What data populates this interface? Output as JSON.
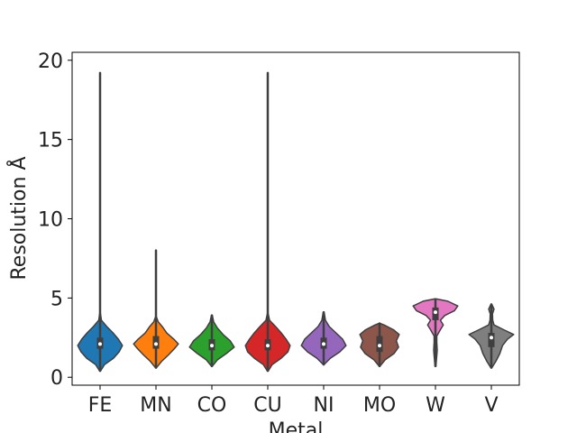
{
  "chart_data": {
    "type": "violin",
    "xlabel": "Metal",
    "ylabel": "Resolution Å",
    "ylim": [
      -0.5,
      20.5
    ],
    "yticks": [
      0,
      5,
      10,
      15,
      20
    ],
    "grid": false,
    "categories": [
      "FE",
      "MN",
      "CO",
      "CU",
      "NI",
      "MO",
      "W",
      "V"
    ],
    "colors": [
      "#1f77b4",
      "#ff7f0e",
      "#2ca02c",
      "#d62728",
      "#9467bd",
      "#8c564b",
      "#e377c2",
      "#7f7f7f"
    ],
    "violins": [
      {
        "min": 0.4,
        "max": 19.2,
        "q1": 1.8,
        "median": 2.1,
        "q3": 2.5,
        "profile": [
          [
            0.4,
            0.02
          ],
          [
            0.8,
            0.2
          ],
          [
            1.2,
            0.6
          ],
          [
            1.6,
            0.85
          ],
          [
            2.0,
            1.0
          ],
          [
            2.4,
            0.82
          ],
          [
            2.8,
            0.58
          ],
          [
            3.2,
            0.3
          ],
          [
            3.6,
            0.06
          ],
          [
            4.0,
            0.02
          ]
        ]
      },
      {
        "min": 0.6,
        "max": 8.0,
        "q1": 1.8,
        "median": 2.1,
        "q3": 2.6,
        "profile": [
          [
            0.6,
            0.02
          ],
          [
            1.0,
            0.25
          ],
          [
            1.4,
            0.55
          ],
          [
            1.8,
            0.82
          ],
          [
            2.1,
            1.0
          ],
          [
            2.4,
            0.8
          ],
          [
            2.8,
            0.48
          ],
          [
            3.2,
            0.28
          ],
          [
            3.5,
            0.1
          ],
          [
            3.8,
            0.02
          ]
        ]
      },
      {
        "min": 0.7,
        "max": 3.9,
        "q1": 1.7,
        "median": 2.0,
        "q3": 2.4,
        "profile": [
          [
            0.7,
            0.02
          ],
          [
            1.1,
            0.25
          ],
          [
            1.5,
            0.65
          ],
          [
            1.9,
            1.0
          ],
          [
            2.3,
            0.82
          ],
          [
            2.7,
            0.5
          ],
          [
            3.1,
            0.25
          ],
          [
            3.5,
            0.08
          ],
          [
            3.9,
            0.02
          ]
        ]
      },
      {
        "min": 0.4,
        "max": 19.2,
        "q1": 1.7,
        "median": 2.0,
        "q3": 2.4,
        "profile": [
          [
            0.4,
            0.02
          ],
          [
            0.8,
            0.2
          ],
          [
            1.2,
            0.6
          ],
          [
            1.6,
            0.9
          ],
          [
            2.0,
            1.0
          ],
          [
            2.4,
            0.82
          ],
          [
            2.8,
            0.6
          ],
          [
            3.2,
            0.35
          ],
          [
            3.6,
            0.08
          ],
          [
            4.0,
            0.02
          ]
        ]
      },
      {
        "min": 0.8,
        "max": 4.1,
        "q1": 1.8,
        "median": 2.1,
        "q3": 2.5,
        "profile": [
          [
            0.8,
            0.02
          ],
          [
            1.2,
            0.3
          ],
          [
            1.6,
            0.72
          ],
          [
            2.0,
            1.0
          ],
          [
            2.4,
            0.85
          ],
          [
            2.8,
            0.55
          ],
          [
            3.2,
            0.25
          ],
          [
            3.6,
            0.08
          ],
          [
            4.1,
            0.02
          ]
        ]
      },
      {
        "min": 0.7,
        "max": 3.4,
        "q1": 1.6,
        "median": 2.0,
        "q3": 2.6,
        "profile": [
          [
            0.7,
            0.02
          ],
          [
            1.1,
            0.25
          ],
          [
            1.5,
            0.65
          ],
          [
            1.9,
            0.85
          ],
          [
            2.3,
            0.75
          ],
          [
            2.7,
            0.88
          ],
          [
            3.0,
            0.62
          ],
          [
            3.3,
            0.2
          ],
          [
            3.4,
            0.02
          ]
        ]
      },
      {
        "min": 0.7,
        "max": 4.9,
        "q1": 3.6,
        "median": 4.1,
        "q3": 4.4,
        "profile": [
          [
            0.7,
            0.02
          ],
          [
            1.2,
            0.05
          ],
          [
            1.7,
            0.08
          ],
          [
            2.2,
            0.06
          ],
          [
            2.6,
            0.06
          ],
          [
            3.0,
            0.22
          ],
          [
            3.3,
            0.35
          ],
          [
            3.6,
            0.22
          ],
          [
            3.9,
            0.42
          ],
          [
            4.2,
            0.85
          ],
          [
            4.5,
            1.0
          ],
          [
            4.8,
            0.55
          ],
          [
            4.95,
            0.02
          ]
        ]
      },
      {
        "min": 0.6,
        "max": 4.6,
        "q1": 1.9,
        "median": 2.5,
        "q3": 2.8,
        "profile": [
          [
            0.6,
            0.02
          ],
          [
            1.0,
            0.2
          ],
          [
            1.5,
            0.38
          ],
          [
            2.0,
            0.5
          ],
          [
            2.4,
            0.72
          ],
          [
            2.7,
            1.0
          ],
          [
            3.0,
            0.55
          ],
          [
            3.3,
            0.12
          ],
          [
            3.6,
            0.06
          ],
          [
            4.0,
            0.05
          ],
          [
            4.3,
            0.12
          ],
          [
            4.6,
            0.02
          ]
        ]
      }
    ]
  }
}
